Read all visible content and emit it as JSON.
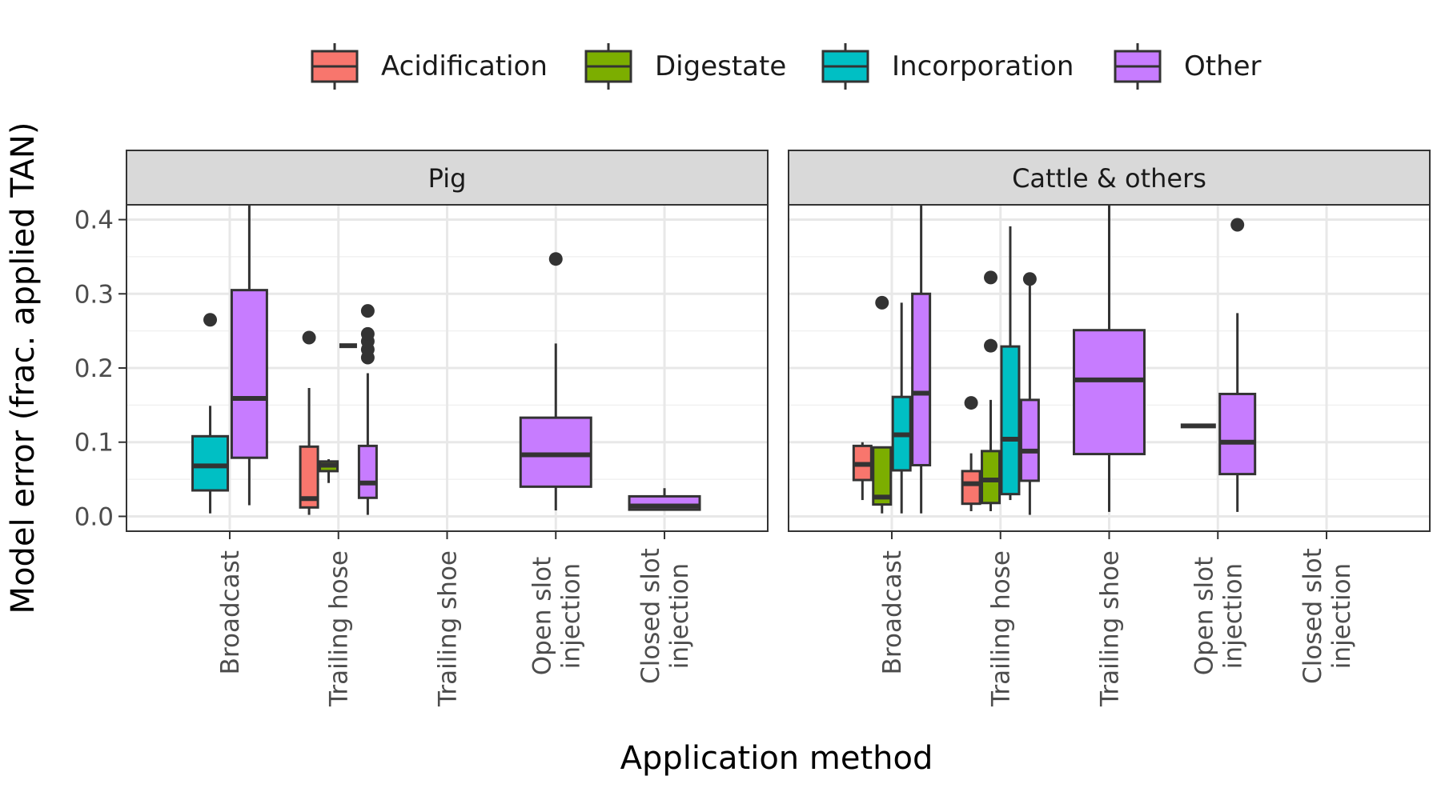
{
  "chart_data": {
    "type": "boxplot",
    "xlabel": "Application method",
    "ylabel": "Model error (frac. applied TAN)",
    "ylim": [
      -0.02,
      0.42
    ],
    "yticks": [
      0.0,
      0.1,
      0.2,
      0.3,
      0.4
    ],
    "ytick_labels": [
      "0.0",
      "0.1",
      "0.2",
      "0.3",
      "0.4"
    ],
    "grid": true,
    "legend_position": "top",
    "categories": [
      "Broadcast",
      "Trailing hose",
      "Trailing shoe",
      "Open slot injection",
      "Closed slot injection"
    ],
    "category_label_lines": [
      [
        "Broadcast"
      ],
      [
        "Trailing hose"
      ],
      [
        "Trailing shoe"
      ],
      [
        "Open slot",
        "injection"
      ],
      [
        "Closed slot",
        "injection"
      ]
    ],
    "groups": [
      {
        "name": "Acidification",
        "color": "#F8766D"
      },
      {
        "name": "Digestate",
        "color": "#7CAE00"
      },
      {
        "name": "Incorporation",
        "color": "#00BFC4"
      },
      {
        "name": "Other",
        "color": "#C77CFF"
      }
    ],
    "panels": [
      {
        "title": "Pig",
        "boxes": [
          {
            "category": "Broadcast",
            "group": "Incorporation",
            "slot": 0,
            "nslots": 2,
            "whislo": 0.004,
            "q1": 0.035,
            "med": 0.068,
            "q3": 0.108,
            "whishi": 0.149,
            "outliers": [
              0.265
            ]
          },
          {
            "category": "Broadcast",
            "group": "Other",
            "slot": 1,
            "nslots": 2,
            "whislo": 0.015,
            "q1": 0.079,
            "med": 0.159,
            "q3": 0.305,
            "whishi": 0.42,
            "outliers": []
          },
          {
            "category": "Trailing hose",
            "group": "Acidification",
            "slot": 0,
            "nslots": 4,
            "whislo": 0.002,
            "q1": 0.012,
            "med": 0.024,
            "q3": 0.094,
            "whishi": 0.173,
            "outliers": [
              0.241
            ]
          },
          {
            "category": "Trailing hose",
            "group": "Digestate",
            "slot": 1,
            "nslots": 4,
            "whislo": 0.045,
            "q1": 0.061,
            "med": 0.069,
            "q3": 0.074,
            "whishi": 0.077,
            "outliers": []
          },
          {
            "category": "Trailing hose",
            "group": "Incorporation",
            "slot": 2,
            "nslots": 4,
            "whislo": 0.23,
            "q1": 0.23,
            "med": 0.23,
            "q3": 0.23,
            "whishi": 0.23,
            "outliers": []
          },
          {
            "category": "Trailing hose",
            "group": "Other",
            "slot": 3,
            "nslots": 4,
            "whislo": 0.002,
            "q1": 0.025,
            "med": 0.045,
            "q3": 0.095,
            "whishi": 0.193,
            "outliers": [
              0.214,
              0.225,
              0.236,
              0.246,
              0.277
            ]
          },
          {
            "category": "Open slot injection",
            "group": "Other",
            "slot": 0,
            "nslots": 1,
            "whislo": 0.008,
            "q1": 0.04,
            "med": 0.083,
            "q3": 0.133,
            "whishi": 0.233,
            "outliers": [
              0.347
            ]
          },
          {
            "category": "Closed slot injection",
            "group": "Other",
            "slot": 0,
            "nslots": 1,
            "whislo": 0.008,
            "q1": 0.009,
            "med": 0.014,
            "q3": 0.027,
            "whishi": 0.038,
            "outliers": []
          }
        ]
      },
      {
        "title": "Cattle & others",
        "boxes": [
          {
            "category": "Broadcast",
            "group": "Acidification",
            "slot": 0,
            "nslots": 4,
            "whislo": 0.022,
            "q1": 0.049,
            "med": 0.07,
            "q3": 0.095,
            "whishi": 0.1,
            "outliers": []
          },
          {
            "category": "Broadcast",
            "group": "Digestate",
            "slot": 1,
            "nslots": 4,
            "whislo": 0.004,
            "q1": 0.016,
            "med": 0.026,
            "q3": 0.093,
            "whishi": 0.093,
            "outliers": [
              0.288
            ]
          },
          {
            "category": "Broadcast",
            "group": "Incorporation",
            "slot": 2,
            "nslots": 4,
            "whislo": 0.004,
            "q1": 0.062,
            "med": 0.11,
            "q3": 0.161,
            "whishi": 0.288,
            "outliers": []
          },
          {
            "category": "Broadcast",
            "group": "Other",
            "slot": 3,
            "nslots": 4,
            "whislo": 0.004,
            "q1": 0.069,
            "med": 0.166,
            "q3": 0.3,
            "whishi": 0.42,
            "outliers": []
          },
          {
            "category": "Trailing hose",
            "group": "Acidification",
            "slot": 0,
            "nslots": 4,
            "whislo": 0.007,
            "q1": 0.017,
            "med": 0.044,
            "q3": 0.061,
            "whishi": 0.085,
            "outliers": [
              0.153
            ]
          },
          {
            "category": "Trailing hose",
            "group": "Digestate",
            "slot": 1,
            "nslots": 4,
            "whislo": 0.007,
            "q1": 0.018,
            "med": 0.049,
            "q3": 0.088,
            "whishi": 0.157,
            "outliers": [
              0.23,
              0.322
            ]
          },
          {
            "category": "Trailing hose",
            "group": "Incorporation",
            "slot": 2,
            "nslots": 4,
            "whislo": 0.022,
            "q1": 0.03,
            "med": 0.104,
            "q3": 0.229,
            "whishi": 0.391,
            "outliers": []
          },
          {
            "category": "Trailing hose",
            "group": "Other",
            "slot": 3,
            "nslots": 4,
            "whislo": 0.002,
            "q1": 0.048,
            "med": 0.088,
            "q3": 0.157,
            "whishi": 0.32,
            "outliers": [
              0.32
            ]
          },
          {
            "category": "Trailing shoe",
            "group": "Other",
            "slot": 0,
            "nslots": 1,
            "whislo": 0.006,
            "q1": 0.084,
            "med": 0.184,
            "q3": 0.251,
            "whishi": 0.42,
            "outliers": []
          },
          {
            "category": "Open slot injection",
            "group": "Incorporation",
            "slot": 0,
            "nslots": 2,
            "whislo": 0.122,
            "q1": 0.122,
            "med": 0.122,
            "q3": 0.122,
            "whishi": 0.122,
            "outliers": []
          },
          {
            "category": "Open slot injection",
            "group": "Other",
            "slot": 1,
            "nslots": 2,
            "whislo": 0.006,
            "q1": 0.057,
            "med": 0.1,
            "q3": 0.165,
            "whishi": 0.274,
            "outliers": [
              0.393
            ]
          }
        ]
      }
    ]
  }
}
